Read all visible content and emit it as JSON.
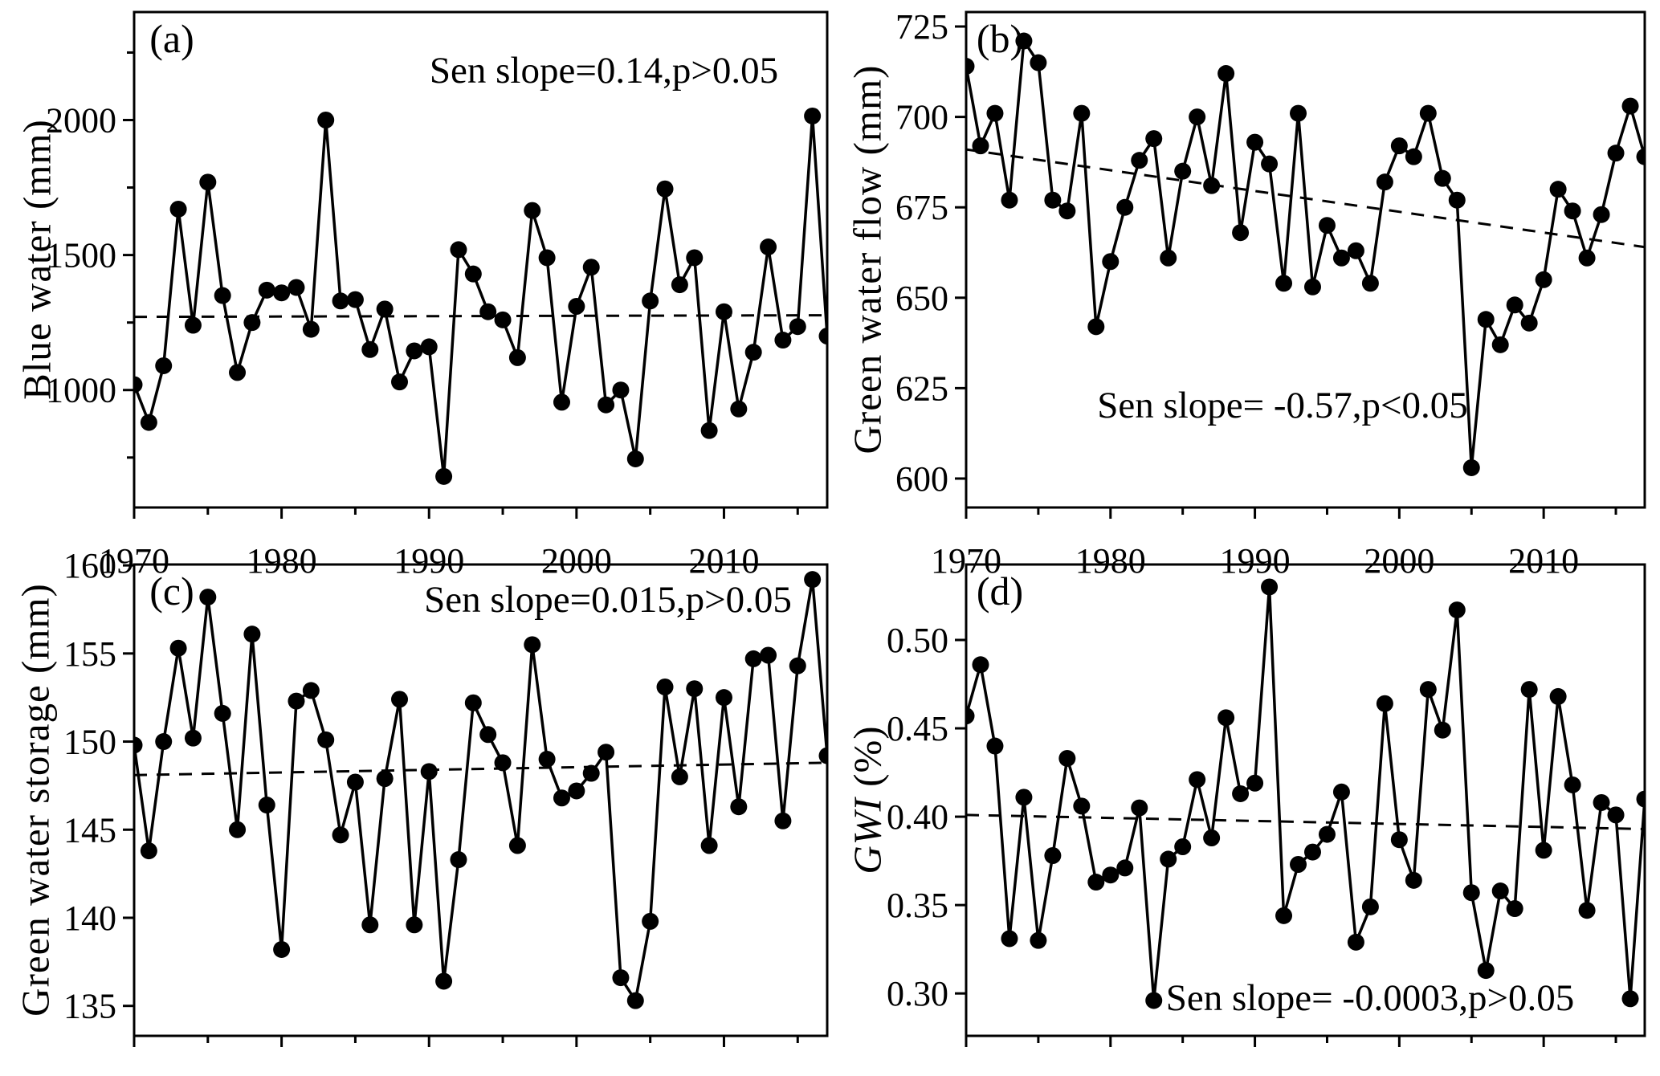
{
  "figure": {
    "background": "#ffffff",
    "ink": "#000000"
  },
  "years": [
    1970,
    1971,
    1972,
    1973,
    1974,
    1975,
    1976,
    1977,
    1978,
    1979,
    1980,
    1981,
    1982,
    1983,
    1984,
    1985,
    1986,
    1987,
    1988,
    1989,
    1990,
    1991,
    1992,
    1993,
    1994,
    1995,
    1996,
    1997,
    1998,
    1999,
    2000,
    2001,
    2002,
    2003,
    2004,
    2005,
    2006,
    2007,
    2008,
    2009,
    2010,
    2011,
    2012,
    2013,
    2014,
    2015,
    2016,
    2017
  ],
  "x_ticks_major": [
    1970,
    1980,
    1990,
    2000,
    2010
  ],
  "x_ticks_minor": [
    1975,
    1985,
    1995,
    2005,
    2015
  ],
  "x_tick_labels": [
    "1970",
    "1980",
    "1990",
    "2000",
    "2010"
  ],
  "chart_data": [
    {
      "id": "a",
      "type": "line",
      "letter": "(a)",
      "ylabel_italic": "",
      "ylabel_rest": "Blue water (mm)",
      "annotation": "Sen slope=0.14,p>0.05",
      "x_range": [
        1970,
        2017
      ],
      "ylim": [
        565,
        2400
      ],
      "yticks": [
        1000,
        1500,
        2000
      ],
      "ytick_labels": [
        "1000",
        "1500",
        "2000"
      ],
      "yticks_minor": [
        750,
        1250,
        1750,
        2250
      ],
      "trend": [
        1271,
        1277
      ],
      "values": [
        1020,
        880,
        1090,
        1670,
        1240,
        1770,
        1350,
        1065,
        1250,
        1370,
        1360,
        1380,
        1225,
        2000,
        1330,
        1335,
        1150,
        1300,
        1030,
        1145,
        1160,
        680,
        1520,
        1430,
        1290,
        1260,
        1120,
        1665,
        1490,
        955,
        1310,
        1455,
        945,
        1000,
        745,
        1330,
        1745,
        1390,
        1490,
        850,
        1290,
        930,
        1140,
        1530,
        1185,
        1235,
        2015,
        1200
      ]
    },
    {
      "id": "b",
      "type": "line",
      "letter": "(b)",
      "ylabel_italic": "",
      "ylabel_rest": "Green water flow (mm)",
      "annotation": "Sen slope= -0.57,p<0.05",
      "x_range": [
        1970,
        2017
      ],
      "ylim": [
        592,
        729
      ],
      "yticks": [
        600,
        625,
        650,
        675,
        700,
        725
      ],
      "ytick_labels": [
        "600",
        "625",
        "650",
        "675",
        "700",
        "725"
      ],
      "yticks_minor": [],
      "trend": [
        691,
        664
      ],
      "values": [
        714,
        692,
        701,
        677,
        721,
        715,
        677,
        674,
        701,
        642,
        660,
        675,
        688,
        694,
        661,
        685,
        700,
        681,
        712,
        668,
        693,
        687,
        654,
        701,
        653,
        670,
        661,
        663,
        654,
        682,
        692,
        689,
        701,
        683,
        677,
        603,
        644,
        637,
        648,
        643,
        655,
        680,
        674,
        661,
        673,
        690,
        703,
        689
      ]
    },
    {
      "id": "c",
      "type": "line",
      "letter": "(c)",
      "ylabel_italic": "",
      "ylabel_rest": "Green water storage (mm)",
      "annotation": "Sen slope=0.015,p>0.05",
      "x_range": [
        1970,
        2017
      ],
      "ylim": [
        133.3,
        160.05
      ],
      "yticks": [
        135,
        140,
        145,
        150,
        155,
        160
      ],
      "ytick_labels": [
        "135",
        "140",
        "145",
        "150",
        "155",
        "160"
      ],
      "yticks_minor": [],
      "trend": [
        148.1,
        148.8
      ],
      "values": [
        149.8,
        143.8,
        150.0,
        155.3,
        150.2,
        158.2,
        151.6,
        145.0,
        156.1,
        146.4,
        138.2,
        152.3,
        152.9,
        150.1,
        144.7,
        147.7,
        139.6,
        147.9,
        152.4,
        139.6,
        148.3,
        136.4,
        143.3,
        152.2,
        150.4,
        148.8,
        144.1,
        155.5,
        149.0,
        146.8,
        147.2,
        148.2,
        149.4,
        136.6,
        135.3,
        139.8,
        153.1,
        148.0,
        153.0,
        144.1,
        152.5,
        146.3,
        154.7,
        154.9,
        145.5,
        154.3,
        159.2,
        149.2
      ]
    },
    {
      "id": "d",
      "type": "line",
      "letter": "(d)",
      "ylabel_italic": "GWI",
      "ylabel_rest": " (%)",
      "annotation": "Sen slope= -0.0003,p>0.05",
      "x_range": [
        1970,
        2017
      ],
      "ylim": [
        0.276,
        0.5427
      ],
      "yticks": [
        0.3,
        0.35,
        0.4,
        0.45,
        0.5
      ],
      "ytick_labels": [
        "0.30",
        "0.35",
        "0.40",
        "0.45",
        "0.50"
      ],
      "yticks_minor": [],
      "trend": [
        0.401,
        0.393
      ],
      "values": [
        0.457,
        0.486,
        0.44,
        0.331,
        0.411,
        0.33,
        0.378,
        0.433,
        0.406,
        0.363,
        0.367,
        0.371,
        0.405,
        0.296,
        0.376,
        0.383,
        0.421,
        0.388,
        0.456,
        0.413,
        0.419,
        0.53,
        0.344,
        0.373,
        0.38,
        0.39,
        0.414,
        0.329,
        0.349,
        0.464,
        0.387,
        0.364,
        0.472,
        0.449,
        0.517,
        0.357,
        0.313,
        0.358,
        0.348,
        0.472,
        0.381,
        0.468,
        0.418,
        0.347,
        0.408,
        0.401,
        0.297,
        0.41
      ]
    }
  ]
}
